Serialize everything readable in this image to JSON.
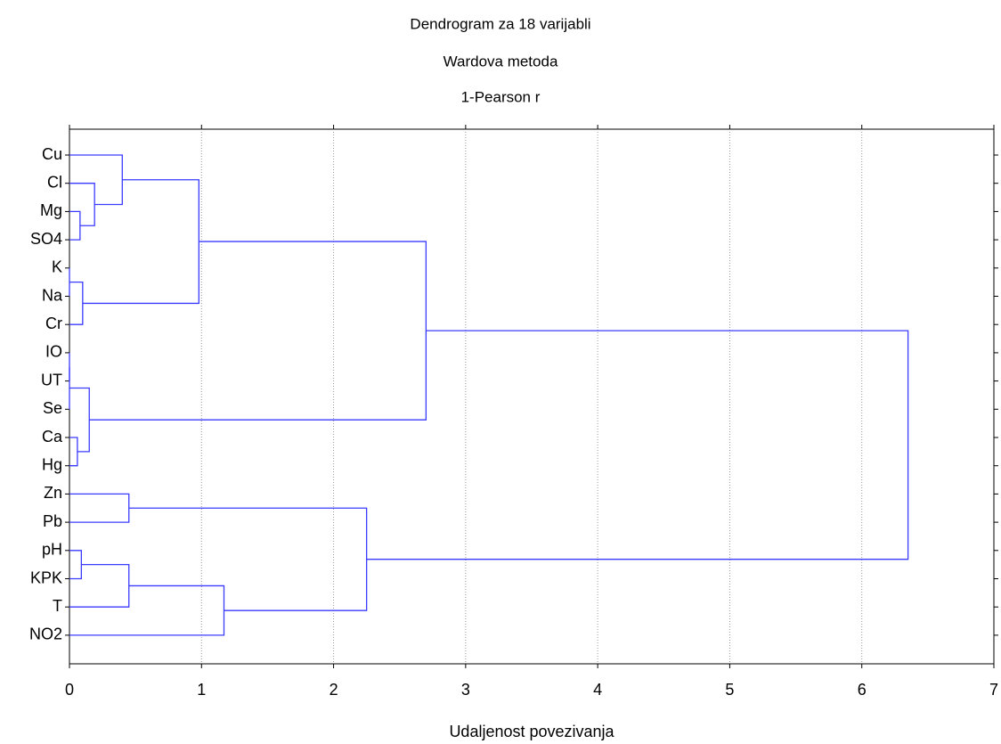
{
  "chart_data": {
    "type": "dendrogram",
    "title": "Dendrogram za 18 varijabli",
    "subtitle": [
      "Wardova metoda",
      "1-Pearson r"
    ],
    "x_label": "Udaljenost povezivanja",
    "leaves": [
      "Cu",
      "Cl",
      "Mg",
      "SO4",
      "K",
      "Na",
      "Cr",
      "IO",
      "UT",
      "Se",
      "Ca",
      "Hg",
      "Zn",
      "Pb",
      "pH",
      "KPK",
      "T",
      "NO2"
    ],
    "merges": [
      [
        4,
        5,
        0
      ],
      [
        2,
        3,
        0.08
      ],
      [
        7,
        8,
        0
      ],
      [
        10,
        11,
        0.06
      ],
      [
        14,
        15,
        0.09
      ],
      [
        18,
        6,
        0.1
      ],
      [
        20,
        9,
        0
      ],
      [
        1,
        19,
        0.19
      ],
      [
        24,
        21,
        0.15
      ],
      [
        0,
        25,
        0.4
      ],
      [
        12,
        13,
        0.45
      ],
      [
        22,
        16,
        0.45
      ],
      [
        27,
        23,
        0.98
      ],
      [
        29,
        17,
        1.17
      ],
      [
        30,
        26,
        2.7
      ],
      [
        28,
        31,
        2.25
      ],
      [
        32,
        33,
        6.35
      ]
    ],
    "xlim": [
      0,
      7
    ],
    "xticks": [
      0,
      1,
      2,
      3,
      4,
      5,
      6,
      7
    ],
    "grid": true,
    "color": "#3b3bff"
  }
}
